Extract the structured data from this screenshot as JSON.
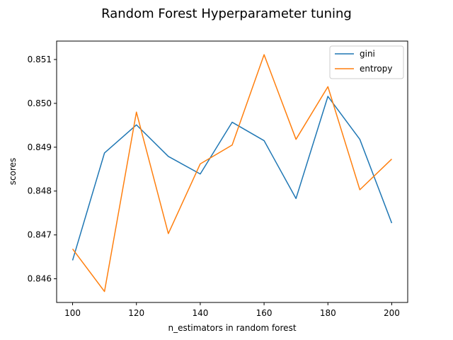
{
  "chart_data": {
    "type": "line",
    "title": "Random Forest Hyperparameter tuning",
    "xlabel": "n_estimators in random forest",
    "ylabel": "scores",
    "x": [
      100,
      110,
      120,
      130,
      140,
      150,
      160,
      170,
      180,
      190,
      200
    ],
    "xticks": [
      "100",
      "120",
      "140",
      "160",
      "180",
      "200"
    ],
    "yticks": [
      "0.846",
      "0.847",
      "0.848",
      "0.849",
      "0.850",
      "0.851"
    ],
    "xlim": [
      95,
      205
    ],
    "ylim": [
      0.84546,
      0.85142
    ],
    "grid": false,
    "legend_position": "top-right",
    "series": [
      {
        "name": "gini",
        "color": "#1f77b4",
        "values": [
          0.84642,
          0.84887,
          0.84951,
          0.84879,
          0.84839,
          0.84957,
          0.84915,
          0.84783,
          0.85016,
          0.84918,
          0.84727
        ]
      },
      {
        "name": "entropy",
        "color": "#ff7f0e",
        "values": [
          0.84668,
          0.84571,
          0.8498,
          0.84703,
          0.84862,
          0.84905,
          0.85111,
          0.84918,
          0.85038,
          0.84803,
          0.84873
        ]
      }
    ]
  }
}
